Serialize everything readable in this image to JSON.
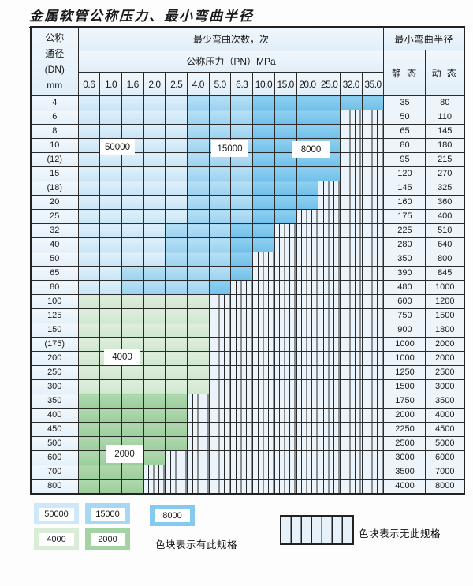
{
  "title": "金属软管公称压力、最小弯曲半径",
  "table": {
    "dn_header_lines": [
      "公称",
      "通径",
      "(DN)",
      "mm"
    ],
    "cycles_header": "最少弯曲次数，次",
    "pressure_header": "公称压力（PN）MPa",
    "radius_header": "最小弯曲半径",
    "static_header": "静 态",
    "dynamic_header": "动 态",
    "pressure_columns": [
      "0.6",
      "1.0",
      "1.6",
      "2.0",
      "2.5",
      "4.0",
      "5.0",
      "6.3",
      "10.0",
      "15.0",
      "20.0",
      "25.0",
      "32.0",
      "35.0"
    ],
    "zone_legend_meaning": {
      "z50": "50000",
      "z15": "15000",
      "z8": "8000",
      "g4": "4000",
      "g2": "2000",
      "none": "无此规格"
    },
    "rows": [
      {
        "dn": "4",
        "zones": [
          [
            "z50",
            5
          ],
          [
            "z15",
            3
          ],
          [
            "z8",
            6
          ]
        ],
        "static": "35",
        "dynamic": "80"
      },
      {
        "dn": "6",
        "zones": [
          [
            "z50",
            5
          ],
          [
            "z15",
            3
          ],
          [
            "z8",
            4
          ]
        ],
        "static": "50",
        "dynamic": "110"
      },
      {
        "dn": "8",
        "zones": [
          [
            "z50",
            5
          ],
          [
            "z15",
            3
          ],
          [
            "z8",
            4
          ]
        ],
        "static": "65",
        "dynamic": "145"
      },
      {
        "dn": "10",
        "zones": [
          [
            "z50",
            5
          ],
          [
            "z15",
            3
          ],
          [
            "z8",
            4
          ]
        ],
        "static": "80",
        "dynamic": "180"
      },
      {
        "dn": "(12)",
        "zones": [
          [
            "z50",
            5
          ],
          [
            "z15",
            3
          ],
          [
            "z8",
            4
          ]
        ],
        "static": "95",
        "dynamic": "215"
      },
      {
        "dn": "15",
        "zones": [
          [
            "z50",
            5
          ],
          [
            "z15",
            3
          ],
          [
            "z8",
            4
          ]
        ],
        "static": "120",
        "dynamic": "270"
      },
      {
        "dn": "(18)",
        "zones": [
          [
            "z50",
            5
          ],
          [
            "z15",
            3
          ],
          [
            "z8",
            3
          ]
        ],
        "static": "145",
        "dynamic": "325"
      },
      {
        "dn": "20",
        "zones": [
          [
            "z50",
            5
          ],
          [
            "z15",
            3
          ],
          [
            "z8",
            3
          ]
        ],
        "static": "160",
        "dynamic": "360"
      },
      {
        "dn": "25",
        "zones": [
          [
            "z50",
            5
          ],
          [
            "z15",
            3
          ],
          [
            "z8",
            2
          ]
        ],
        "static": "175",
        "dynamic": "400"
      },
      {
        "dn": "32",
        "zones": [
          [
            "z50",
            4
          ],
          [
            "z15",
            3
          ],
          [
            "z8",
            2
          ]
        ],
        "static": "225",
        "dynamic": "510"
      },
      {
        "dn": "40",
        "zones": [
          [
            "z50",
            4
          ],
          [
            "z15",
            3
          ],
          [
            "z8",
            2
          ]
        ],
        "static": "280",
        "dynamic": "640"
      },
      {
        "dn": "50",
        "zones": [
          [
            "z50",
            4
          ],
          [
            "z15",
            3
          ],
          [
            "z8",
            1
          ]
        ],
        "static": "350",
        "dynamic": "800"
      },
      {
        "dn": "65",
        "zones": [
          [
            "z50",
            2
          ],
          [
            "z15",
            5
          ],
          [
            "z8",
            1
          ]
        ],
        "static": "390",
        "dynamic": "845"
      },
      {
        "dn": "80",
        "zones": [
          [
            "z50",
            2
          ],
          [
            "z15",
            4
          ],
          [
            "z8",
            1
          ]
        ],
        "static": "480",
        "dynamic": "1000"
      },
      {
        "dn": "100",
        "zones": [
          [
            "g4",
            6
          ]
        ],
        "static": "600",
        "dynamic": "1200"
      },
      {
        "dn": "125",
        "zones": [
          [
            "g4",
            6
          ]
        ],
        "static": "750",
        "dynamic": "1500"
      },
      {
        "dn": "150",
        "zones": [
          [
            "g4",
            6
          ]
        ],
        "static": "900",
        "dynamic": "1800"
      },
      {
        "dn": "(175)",
        "zones": [
          [
            "g4",
            6
          ]
        ],
        "static": "1000",
        "dynamic": "2000"
      },
      {
        "dn": "200",
        "zones": [
          [
            "g4",
            6
          ]
        ],
        "static": "1000",
        "dynamic": "2000"
      },
      {
        "dn": "250",
        "zones": [
          [
            "g4",
            6
          ]
        ],
        "static": "1250",
        "dynamic": "2500"
      },
      {
        "dn": "300",
        "zones": [
          [
            "g4",
            6
          ]
        ],
        "static": "1500",
        "dynamic": "3000"
      },
      {
        "dn": "350",
        "zones": [
          [
            "g2",
            5
          ]
        ],
        "static": "1750",
        "dynamic": "3500"
      },
      {
        "dn": "400",
        "zones": [
          [
            "g2",
            5
          ]
        ],
        "static": "2000",
        "dynamic": "4000"
      },
      {
        "dn": "450",
        "zones": [
          [
            "g2",
            5
          ]
        ],
        "static": "2250",
        "dynamic": "4500"
      },
      {
        "dn": "500",
        "zones": [
          [
            "g2",
            5
          ]
        ],
        "static": "2500",
        "dynamic": "5000"
      },
      {
        "dn": "600",
        "zones": [
          [
            "g2",
            4
          ]
        ],
        "static": "3000",
        "dynamic": "6000"
      },
      {
        "dn": "700",
        "zones": [
          [
            "g2",
            3
          ]
        ],
        "static": "3500",
        "dynamic": "7000"
      },
      {
        "dn": "800",
        "zones": [
          [
            "g2",
            3
          ]
        ],
        "static": "4000",
        "dynamic": "8000"
      }
    ]
  },
  "overlay_labels": {
    "l50000": "50000",
    "l15000": "15000",
    "l8000": "8000",
    "l4000": "4000",
    "l2000": "2000"
  },
  "legend": {
    "items": [
      {
        "label": "50000",
        "zone": "z50"
      },
      {
        "label": "15000",
        "zone": "z15"
      },
      {
        "label": "8000",
        "zone": "z8"
      },
      {
        "label": "4000",
        "zone": "g4"
      },
      {
        "label": "2000",
        "zone": "g2"
      }
    ],
    "has_spec_text": "色块表示有此规格",
    "no_spec_text": "色块表示无此规格"
  },
  "colors": {
    "blue_50000": "#cde8f8",
    "blue_15000": "#a6d8f3",
    "blue_8000": "#84c9ee",
    "green_4000": "#d9ecd8",
    "green_2000": "#a3d2a3",
    "hatch_bg": "#ecf4fb",
    "header_bg": "#e8f2fa",
    "grid": "#2b2b2b"
  }
}
